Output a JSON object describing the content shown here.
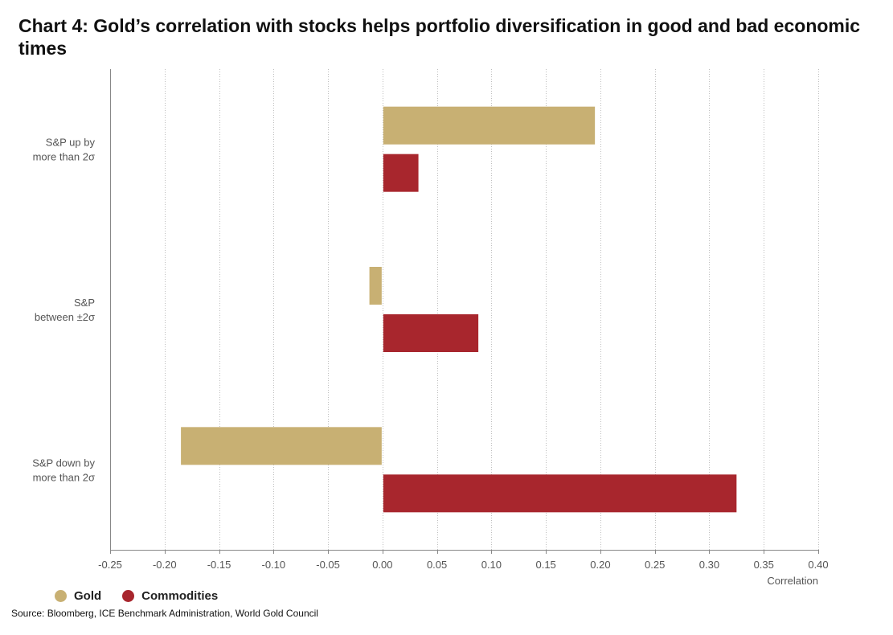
{
  "title": "Chart 4: Gold’s correlation with stocks helps portfolio diversification in good and bad economic times",
  "source": "Source: Bloomberg, ICE Benchmark Administration, World Gold Council",
  "colors": {
    "gold": "#c8b073",
    "commodities": "#a8262d"
  },
  "chart_data": {
    "type": "bar",
    "orientation": "horizontal",
    "categories": [
      "S&P up by\nmore than 2σ",
      "S&P\nbetween ±2σ",
      "S&P down by\nmore than 2σ"
    ],
    "series": [
      {
        "name": "Gold",
        "color": "#c8b073",
        "values": [
          0.195,
          -0.012,
          -0.185
        ]
      },
      {
        "name": "Commodities",
        "color": "#a8262d",
        "values": [
          0.033,
          0.088,
          0.325
        ]
      }
    ],
    "xlabel": "Correlation",
    "xlim": [
      -0.25,
      0.4
    ],
    "xticks": [
      -0.25,
      -0.2,
      -0.15,
      -0.1,
      -0.05,
      0.0,
      0.05,
      0.1,
      0.15,
      0.2,
      0.25,
      0.3,
      0.35,
      0.4
    ],
    "xtick_labels": [
      "-0.25",
      "-0.20",
      "-0.15",
      "-0.10",
      "-0.05",
      "0.00",
      "0.05",
      "0.10",
      "0.15",
      "0.20",
      "0.25",
      "0.30",
      "0.35",
      "0.40"
    ],
    "grid": true,
    "legend_position": "bottom-left"
  }
}
